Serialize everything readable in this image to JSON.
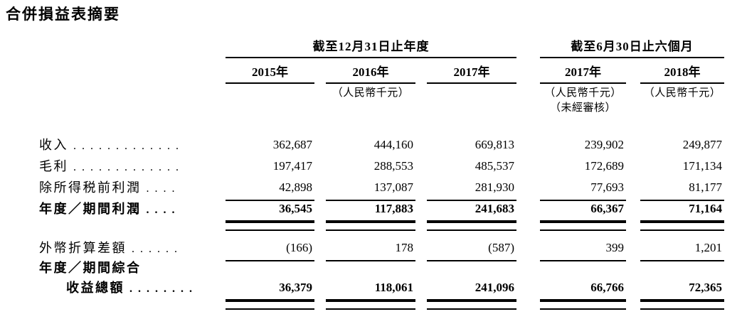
{
  "page": {
    "title": "合併損益表摘要"
  },
  "table": {
    "groups": [
      {
        "label": "截至12月31日止年度",
        "span": 3
      },
      {
        "label": "截至6月30日止六個月",
        "span": 2
      }
    ],
    "columns": [
      {
        "year": "2015年",
        "unit": "",
        "note": ""
      },
      {
        "year": "2016年",
        "unit": "（人民幣千元）",
        "note": ""
      },
      {
        "year": "2017年",
        "unit": "",
        "note": ""
      },
      {
        "year": "2017年",
        "unit": "（人民幣千元）",
        "note": "（未經審核）"
      },
      {
        "year": "2018年",
        "unit": "（人民幣千元）",
        "note": ""
      }
    ],
    "rows": [
      {
        "label": "收入",
        "dots": ".............",
        "values": [
          "362,687",
          "444,160",
          "669,813",
          "239,902",
          "249,877"
        ]
      },
      {
        "label": "毛利",
        "dots": ".............",
        "values": [
          "197,417",
          "288,553",
          "485,537",
          "172,689",
          "171,134"
        ]
      },
      {
        "label": "除所得税前利潤",
        "dots": "....",
        "values": [
          "42,898",
          "137,087",
          "281,930",
          "77,693",
          "81,177"
        ]
      },
      {
        "label": "年度／期間利潤",
        "dots": "....",
        "values": [
          "36,545",
          "117,883",
          "241,683",
          "66,367",
          "71,164"
        ]
      },
      {
        "label": "外幣折算差額",
        "dots": "......",
        "values": [
          "(166)",
          "178",
          "(587)",
          "399",
          "1,201"
        ]
      },
      {
        "label_line1": "年度／期間綜合",
        "label_line2": "收益總額",
        "dots": "........",
        "values": [
          "36,379",
          "118,061",
          "241,096",
          "66,766",
          "72,365"
        ]
      }
    ]
  }
}
